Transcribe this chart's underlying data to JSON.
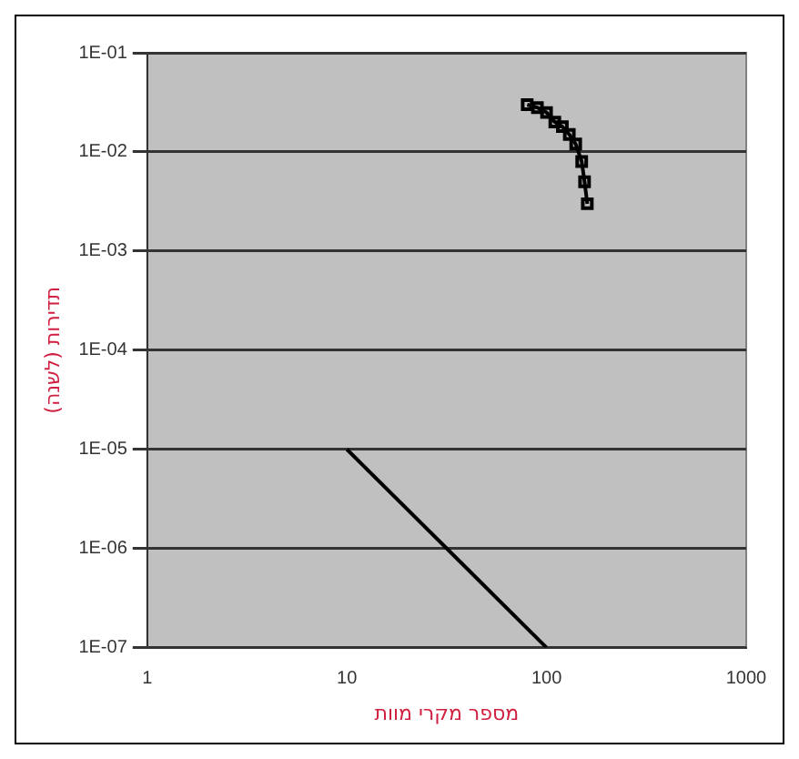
{
  "chart_data": {
    "type": "line",
    "xlabel": "מספר מקרי מוות",
    "ylabel": "תדירות (לשנה)",
    "log": "xy",
    "grid": "y",
    "legend": false,
    "xlim": [
      1,
      1000
    ],
    "xticks": [
      1,
      10,
      100,
      1000
    ],
    "ylim": [
      1e-07,
      0.1
    ],
    "yticks": [
      {
        "value": 1e-07,
        "label": "1E-07"
      },
      {
        "value": 1e-06,
        "label": "1E-06"
      },
      {
        "value": 1e-05,
        "label": "1E-05"
      },
      {
        "value": 0.0001,
        "label": "1E-04"
      },
      {
        "value": 0.001,
        "label": "1E-03"
      },
      {
        "value": 0.01,
        "label": "1E-02"
      },
      {
        "value": 0.1,
        "label": "1E-01"
      }
    ],
    "series": [
      {
        "color": "#000000",
        "marker": "square",
        "x": [
          80,
          90,
          100,
          110,
          120,
          130,
          140,
          150,
          155,
          160
        ],
        "values": [
          0.03,
          0.028,
          0.025,
          0.02,
          0.018,
          0.015,
          0.012,
          0.008,
          0.005,
          0.003
        ]
      },
      {
        "color": "#000000",
        "marker": "none",
        "x": [
          10,
          100
        ],
        "values": [
          1e-05,
          1e-07
        ]
      }
    ]
  }
}
